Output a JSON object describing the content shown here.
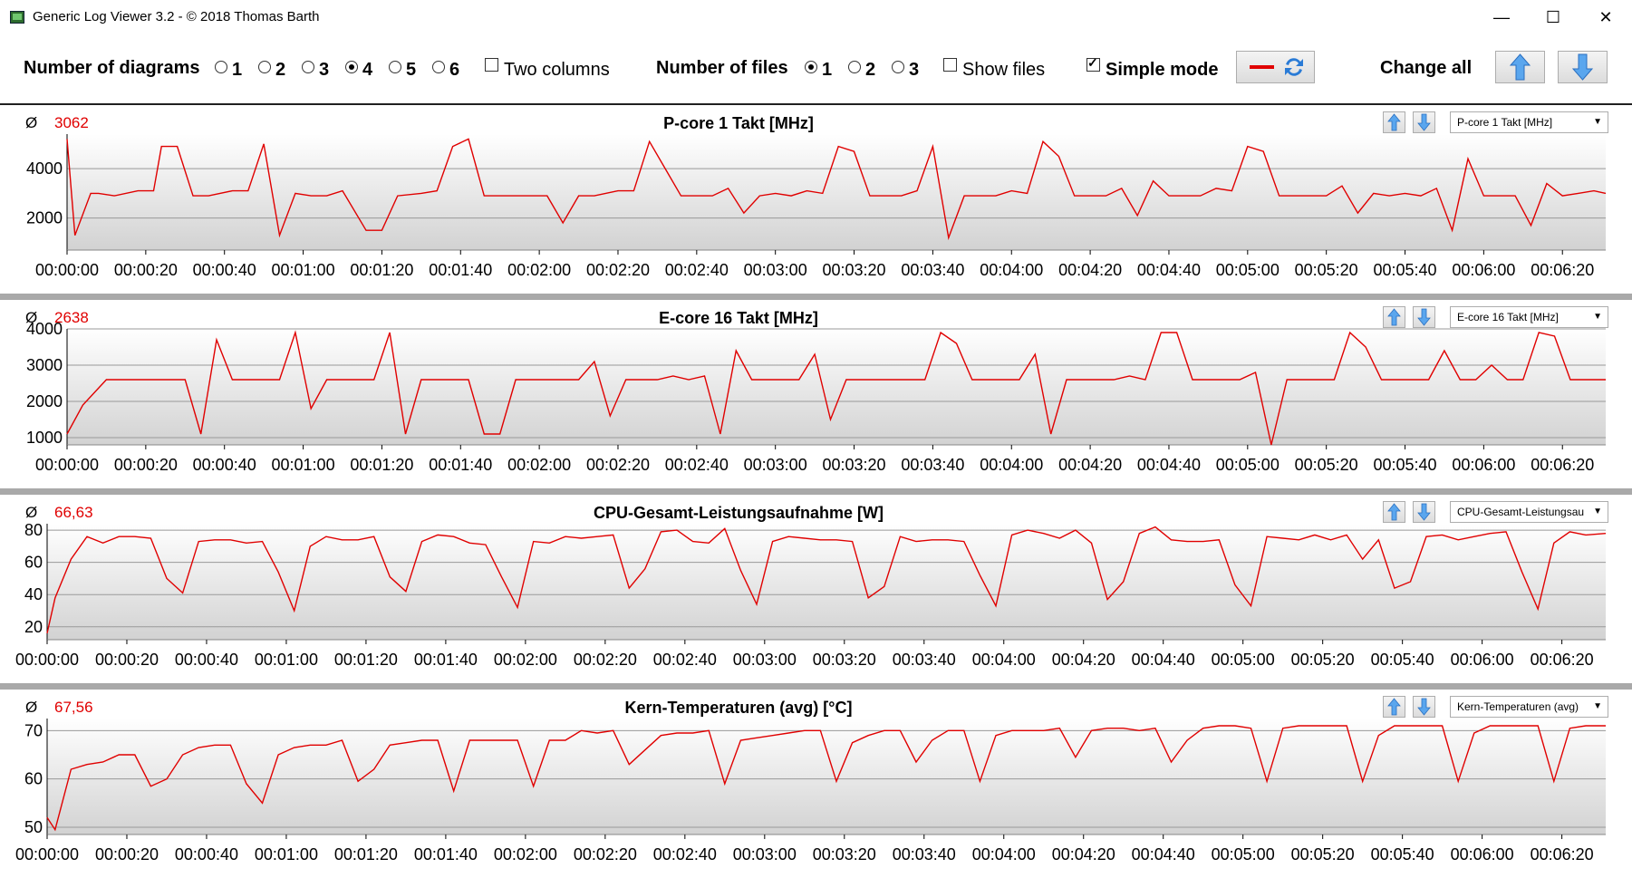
{
  "window": {
    "title": "Generic Log Viewer 3.2 - © 2018 Thomas Barth",
    "controls": {
      "minimize": "—",
      "maximize": "☐",
      "close": "✕"
    }
  },
  "toolbar": {
    "diagrams_label": "Number of diagrams",
    "diagram_options": [
      "1",
      "2",
      "3",
      "4",
      "5",
      "6"
    ],
    "diagram_selected": "4",
    "two_columns_label": "Two columns",
    "two_columns_checked": false,
    "files_label": "Number of files",
    "file_options": [
      "1",
      "2",
      "3"
    ],
    "file_selected": "1",
    "show_files_label": "Show files",
    "show_files_checked": false,
    "simple_mode_label": "Simple mode",
    "simple_mode_checked": true,
    "change_all_label": "Change all"
  },
  "colors": {
    "series": "#e00000",
    "avg": "#e00000",
    "grid": "#999999",
    "arrow_blue": "#3c8fe0"
  },
  "x_ticks": [
    "00:00:00",
    "00:00:20",
    "00:00:40",
    "00:01:00",
    "00:01:20",
    "00:01:40",
    "00:02:00",
    "00:02:20",
    "00:02:40",
    "00:03:00",
    "00:03:20",
    "00:03:40",
    "00:04:00",
    "00:04:20",
    "00:04:40",
    "00:05:00",
    "00:05:20",
    "00:05:40",
    "00:06:00",
    "00:06:20"
  ],
  "chart_data": [
    {
      "type": "line",
      "title": "P-core 1 Takt [MHz]",
      "avg_symbol": "Ø",
      "avg": "3062",
      "selector": "P-core 1 Takt [MHz]",
      "yticks": [
        2000,
        4000
      ],
      "ylim": [
        700,
        5400
      ],
      "xlim": [
        0,
        391
      ],
      "x": [
        0,
        2,
        6,
        8,
        12,
        18,
        22,
        24,
        28,
        32,
        36,
        42,
        46,
        50,
        54,
        58,
        62,
        66,
        70,
        76,
        80,
        84,
        90,
        94,
        98,
        102,
        106,
        110,
        114,
        118,
        122,
        126,
        130,
        134,
        140,
        144,
        148,
        152,
        156,
        160,
        164,
        168,
        172,
        176,
        180,
        184,
        188,
        192,
        196,
        200,
        204,
        208,
        212,
        216,
        220,
        224,
        228,
        232,
        236,
        240,
        244,
        248,
        252,
        256,
        260,
        264,
        268,
        272,
        276,
        280,
        284,
        288,
        292,
        296,
        300,
        304,
        308,
        312,
        316,
        320,
        324,
        328,
        332,
        336,
        340,
        344,
        348,
        352,
        356,
        360,
        364,
        368,
        372,
        376,
        380,
        384,
        388,
        391
      ],
      "y": [
        5200,
        1300,
        3000,
        3000,
        2900,
        3100,
        3100,
        4900,
        4900,
        2900,
        2900,
        3100,
        3100,
        5000,
        1300,
        3000,
        2900,
        2900,
        3100,
        1500,
        1500,
        2900,
        3000,
        3100,
        4900,
        5200,
        2900,
        2900,
        2900,
        2900,
        2900,
        1800,
        2900,
        2900,
        3100,
        3100,
        5100,
        4000,
        2900,
        2900,
        2900,
        3200,
        2200,
        2900,
        3000,
        2900,
        3100,
        3000,
        4900,
        4700,
        2900,
        2900,
        2900,
        3100,
        4900,
        1200,
        2900,
        2900,
        2900,
        3100,
        3000,
        5100,
        4500,
        2900,
        2900,
        2900,
        3200,
        2100,
        3500,
        2900,
        2900,
        2900,
        3200,
        3100,
        4900,
        4700,
        2900,
        2900,
        2900,
        2900,
        3300,
        2200,
        3000,
        2900,
        3000,
        2900,
        3200,
        1500,
        4400,
        2900,
        2900,
        2900,
        1700,
        3400,
        2900,
        3000,
        3100,
        3000
      ],
      "xlabel": "",
      "ylabel": ""
    },
    {
      "type": "line",
      "title": "E-core 16 Takt [MHz]",
      "avg_symbol": "Ø",
      "avg": "2638",
      "selector": "E-core 16 Takt [MHz]",
      "yticks": [
        1000,
        2000,
        3000,
        4000
      ],
      "ylim": [
        800,
        4000
      ],
      "xlim": [
        0,
        391
      ],
      "x": [
        0,
        4,
        10,
        14,
        18,
        22,
        26,
        30,
        34,
        38,
        42,
        46,
        50,
        54,
        58,
        62,
        66,
        70,
        74,
        78,
        82,
        86,
        90,
        94,
        98,
        102,
        106,
        110,
        114,
        118,
        122,
        126,
        130,
        134,
        138,
        142,
        146,
        150,
        154,
        158,
        162,
        166,
        170,
        174,
        178,
        182,
        186,
        190,
        194,
        198,
        202,
        206,
        210,
        214,
        218,
        222,
        226,
        230,
        234,
        238,
        242,
        246,
        250,
        254,
        258,
        262,
        266,
        270,
        274,
        278,
        282,
        286,
        290,
        294,
        298,
        302,
        306,
        310,
        314,
        318,
        322,
        326,
        330,
        334,
        338,
        342,
        346,
        350,
        354,
        358,
        362,
        366,
        370,
        374,
        378,
        382,
        386,
        391
      ],
      "y": [
        1100,
        1900,
        2600,
        2600,
        2600,
        2600,
        2600,
        2600,
        1100,
        3700,
        2600,
        2600,
        2600,
        2600,
        3900,
        1800,
        2600,
        2600,
        2600,
        2600,
        3900,
        1100,
        2600,
        2600,
        2600,
        2600,
        1100,
        1100,
        2600,
        2600,
        2600,
        2600,
        2600,
        3100,
        1600,
        2600,
        2600,
        2600,
        2700,
        2600,
        2700,
        1100,
        3400,
        2600,
        2600,
        2600,
        2600,
        3300,
        1500,
        2600,
        2600,
        2600,
        2600,
        2600,
        2600,
        3900,
        3600,
        2600,
        2600,
        2600,
        2600,
        3300,
        1100,
        2600,
        2600,
        2600,
        2600,
        2700,
        2600,
        3900,
        3900,
        2600,
        2600,
        2600,
        2600,
        2800,
        800,
        2600,
        2600,
        2600,
        2600,
        3900,
        3500,
        2600,
        2600,
        2600,
        2600,
        3400,
        2600,
        2600,
        3000,
        2600,
        2600,
        3900,
        3800,
        2600,
        2600,
        2600
      ],
      "xlabel": "",
      "ylabel": ""
    },
    {
      "type": "line",
      "title": "CPU-Gesamt-Leistungsaufnahme [W]",
      "avg_symbol": "Ø",
      "avg": "66,63",
      "selector": "CPU-Gesamt-Leistungsaufnahme [W]",
      "selector_display": "CPU-Gesamt-Leistungsau",
      "yticks": [
        20,
        40,
        60,
        80
      ],
      "ylim": [
        12,
        84
      ],
      "xlim": [
        0,
        391
      ],
      "x": [
        0,
        2,
        6,
        10,
        14,
        18,
        22,
        26,
        30,
        34,
        38,
        42,
        46,
        50,
        54,
        58,
        62,
        66,
        70,
        74,
        78,
        82,
        86,
        90,
        94,
        98,
        102,
        106,
        110,
        114,
        118,
        122,
        126,
        130,
        134,
        138,
        142,
        146,
        150,
        154,
        158,
        162,
        166,
        170,
        174,
        178,
        182,
        186,
        190,
        194,
        198,
        202,
        206,
        210,
        214,
        218,
        222,
        226,
        230,
        234,
        238,
        242,
        246,
        250,
        254,
        258,
        262,
        266,
        270,
        274,
        278,
        282,
        286,
        290,
        294,
        298,
        302,
        306,
        310,
        314,
        318,
        322,
        326,
        330,
        334,
        338,
        342,
        346,
        350,
        354,
        358,
        362,
        366,
        370,
        374,
        378,
        382,
        386,
        391
      ],
      "y": [
        16,
        38,
        62,
        76,
        72,
        76,
        76,
        75,
        50,
        41,
        73,
        74,
        74,
        72,
        73,
        54,
        30,
        70,
        76,
        74,
        74,
        76,
        51,
        42,
        73,
        77,
        76,
        72,
        71,
        51,
        32,
        73,
        72,
        76,
        75,
        76,
        77,
        44,
        56,
        79,
        80,
        73,
        72,
        81,
        55,
        34,
        73,
        76,
        75,
        74,
        74,
        73,
        38,
        45,
        76,
        73,
        74,
        74,
        73,
        52,
        33,
        77,
        80,
        78,
        75,
        80,
        72,
        37,
        48,
        78,
        82,
        74,
        73,
        73,
        74,
        46,
        33,
        76,
        75,
        74,
        77,
        74,
        77,
        62,
        74,
        44,
        48,
        76,
        77,
        74,
        76,
        78,
        79,
        54,
        31,
        72,
        79,
        77,
        78
      ],
      "xlabel": "",
      "ylabel": ""
    },
    {
      "type": "line",
      "title": "Kern-Temperaturen (avg) [°C]",
      "avg_symbol": "Ø",
      "avg": "67,56",
      "selector": "Kern-Temperaturen (avg)",
      "yticks": [
        50,
        60,
        70
      ],
      "ylim": [
        48.5,
        72.5
      ],
      "xlim": [
        0,
        391
      ],
      "x": [
        0,
        2,
        6,
        10,
        14,
        18,
        22,
        26,
        30,
        34,
        38,
        42,
        46,
        50,
        54,
        58,
        62,
        66,
        70,
        74,
        78,
        82,
        86,
        90,
        94,
        98,
        102,
        106,
        110,
        114,
        118,
        122,
        126,
        130,
        134,
        138,
        142,
        146,
        150,
        154,
        158,
        162,
        166,
        170,
        174,
        178,
        182,
        186,
        190,
        194,
        198,
        202,
        206,
        210,
        214,
        218,
        222,
        226,
        230,
        234,
        238,
        242,
        246,
        250,
        254,
        258,
        262,
        266,
        270,
        274,
        278,
        282,
        286,
        290,
        294,
        298,
        302,
        306,
        310,
        314,
        318,
        322,
        326,
        330,
        334,
        338,
        342,
        346,
        350,
        354,
        358,
        362,
        366,
        370,
        374,
        378,
        382,
        386,
        391
      ],
      "y": [
        52,
        49.5,
        62,
        63,
        63.5,
        65,
        65,
        58.5,
        60,
        65,
        66.5,
        67,
        67,
        59,
        55,
        65,
        66.5,
        67,
        67,
        68,
        59.5,
        62,
        67,
        67.5,
        68,
        68,
        57.5,
        68,
        68,
        68,
        68,
        58.5,
        68,
        68,
        70,
        69.5,
        70,
        63,
        66,
        69,
        69.5,
        69.5,
        70,
        59,
        68,
        68.5,
        69,
        69.5,
        70,
        70,
        59.5,
        67.5,
        69,
        70,
        70,
        63.5,
        68,
        70,
        70,
        59.5,
        69,
        70,
        70,
        70,
        70.5,
        64.5,
        70,
        70.5,
        70.5,
        70,
        70.5,
        63.5,
        68,
        70.5,
        71,
        71,
        70.5,
        59.5,
        70.5,
        71,
        71,
        71,
        71,
        59.5,
        69,
        71,
        71,
        71,
        71,
        59.5,
        69.5,
        71,
        71,
        71,
        71,
        59.5,
        70.5,
        71,
        71
      ],
      "xlabel": "",
      "ylabel": ""
    }
  ]
}
